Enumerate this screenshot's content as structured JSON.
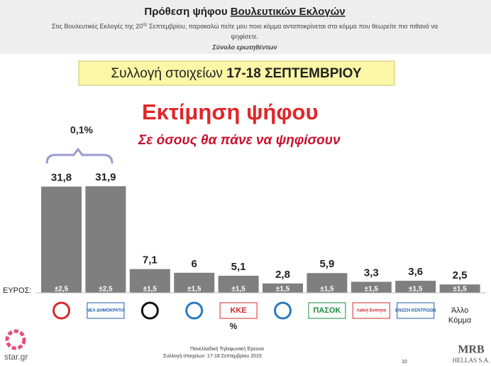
{
  "header": {
    "title": "Πρόθεση ψήφου",
    "title_underlined": "Βουλευτικών Εκλογών",
    "question_start": "Στις Βουλευτικές Εκλογές της 20",
    "question_sup": "ης",
    "question_end": " Σεπτεμβρίου, παρακαλώ πείτε μου ποιο κόμμα ανταποκρίνεται στο κόμμα που θεωρείτε πιο πιθανό να",
    "question_line2": "ψηφίσετε.",
    "base": "Σύνολο ερωτηθέντων",
    "period_label": "Συλλογή στοιχείων",
    "period": "17-18 ΣΕΠΤΕΜΒΡΙΟΥ"
  },
  "chart_data": {
    "type": "bar",
    "title": "Εκτίμηση ψήφου",
    "subtitle": "Σε όσους θα πάνε να ψηφίσουν",
    "categories": [
      null,
      "ΝΕΑ ΔΗΜΟΚΡΑΤΙΑ",
      null,
      null,
      "ΚΚΕ",
      null,
      "ΠΑΣΟΚ",
      "Λαϊκή Ενότητα",
      "ΕΝΩΣΗ ΚΕΝΤΡΩΩΝ",
      "Άλλο Κόμμα"
    ],
    "values": [
      31.8,
      31.9,
      7.1,
      6,
      5.1,
      2.8,
      5.9,
      3.3,
      3.6,
      2.5
    ],
    "value_labels": [
      "31,8",
      "31,9",
      "7,1",
      "6",
      "5,1",
      "2,8",
      "5,9",
      "3,3",
      "3,6",
      "2,5"
    ],
    "errors": [
      2.5,
      2.5,
      1.5,
      1.5,
      1.5,
      1.5,
      1.5,
      1.5,
      1.5,
      1.5
    ],
    "error_labels": [
      "±2,5",
      "±2,5",
      "±1,5",
      "±1,5",
      "±1,5",
      "±1,5",
      "±1,5",
      "±1,5",
      "±1,5",
      "±1,5"
    ],
    "error_title": "ΕΥΡΟΣ:",
    "color": "#7f7f7f",
    "difference_label": "0,1%",
    "unit_note": "%"
  },
  "footer": {
    "survey": "Πανελλαδική  Τηλεφωνική Έρευνα",
    "dates": "Συλλογή στοιχείων: 17-18 Σεπτεμβρίου 2015",
    "page": "10",
    "source": "star.gr",
    "company": "MRB",
    "company_sub": "HELLAS S.A."
  }
}
